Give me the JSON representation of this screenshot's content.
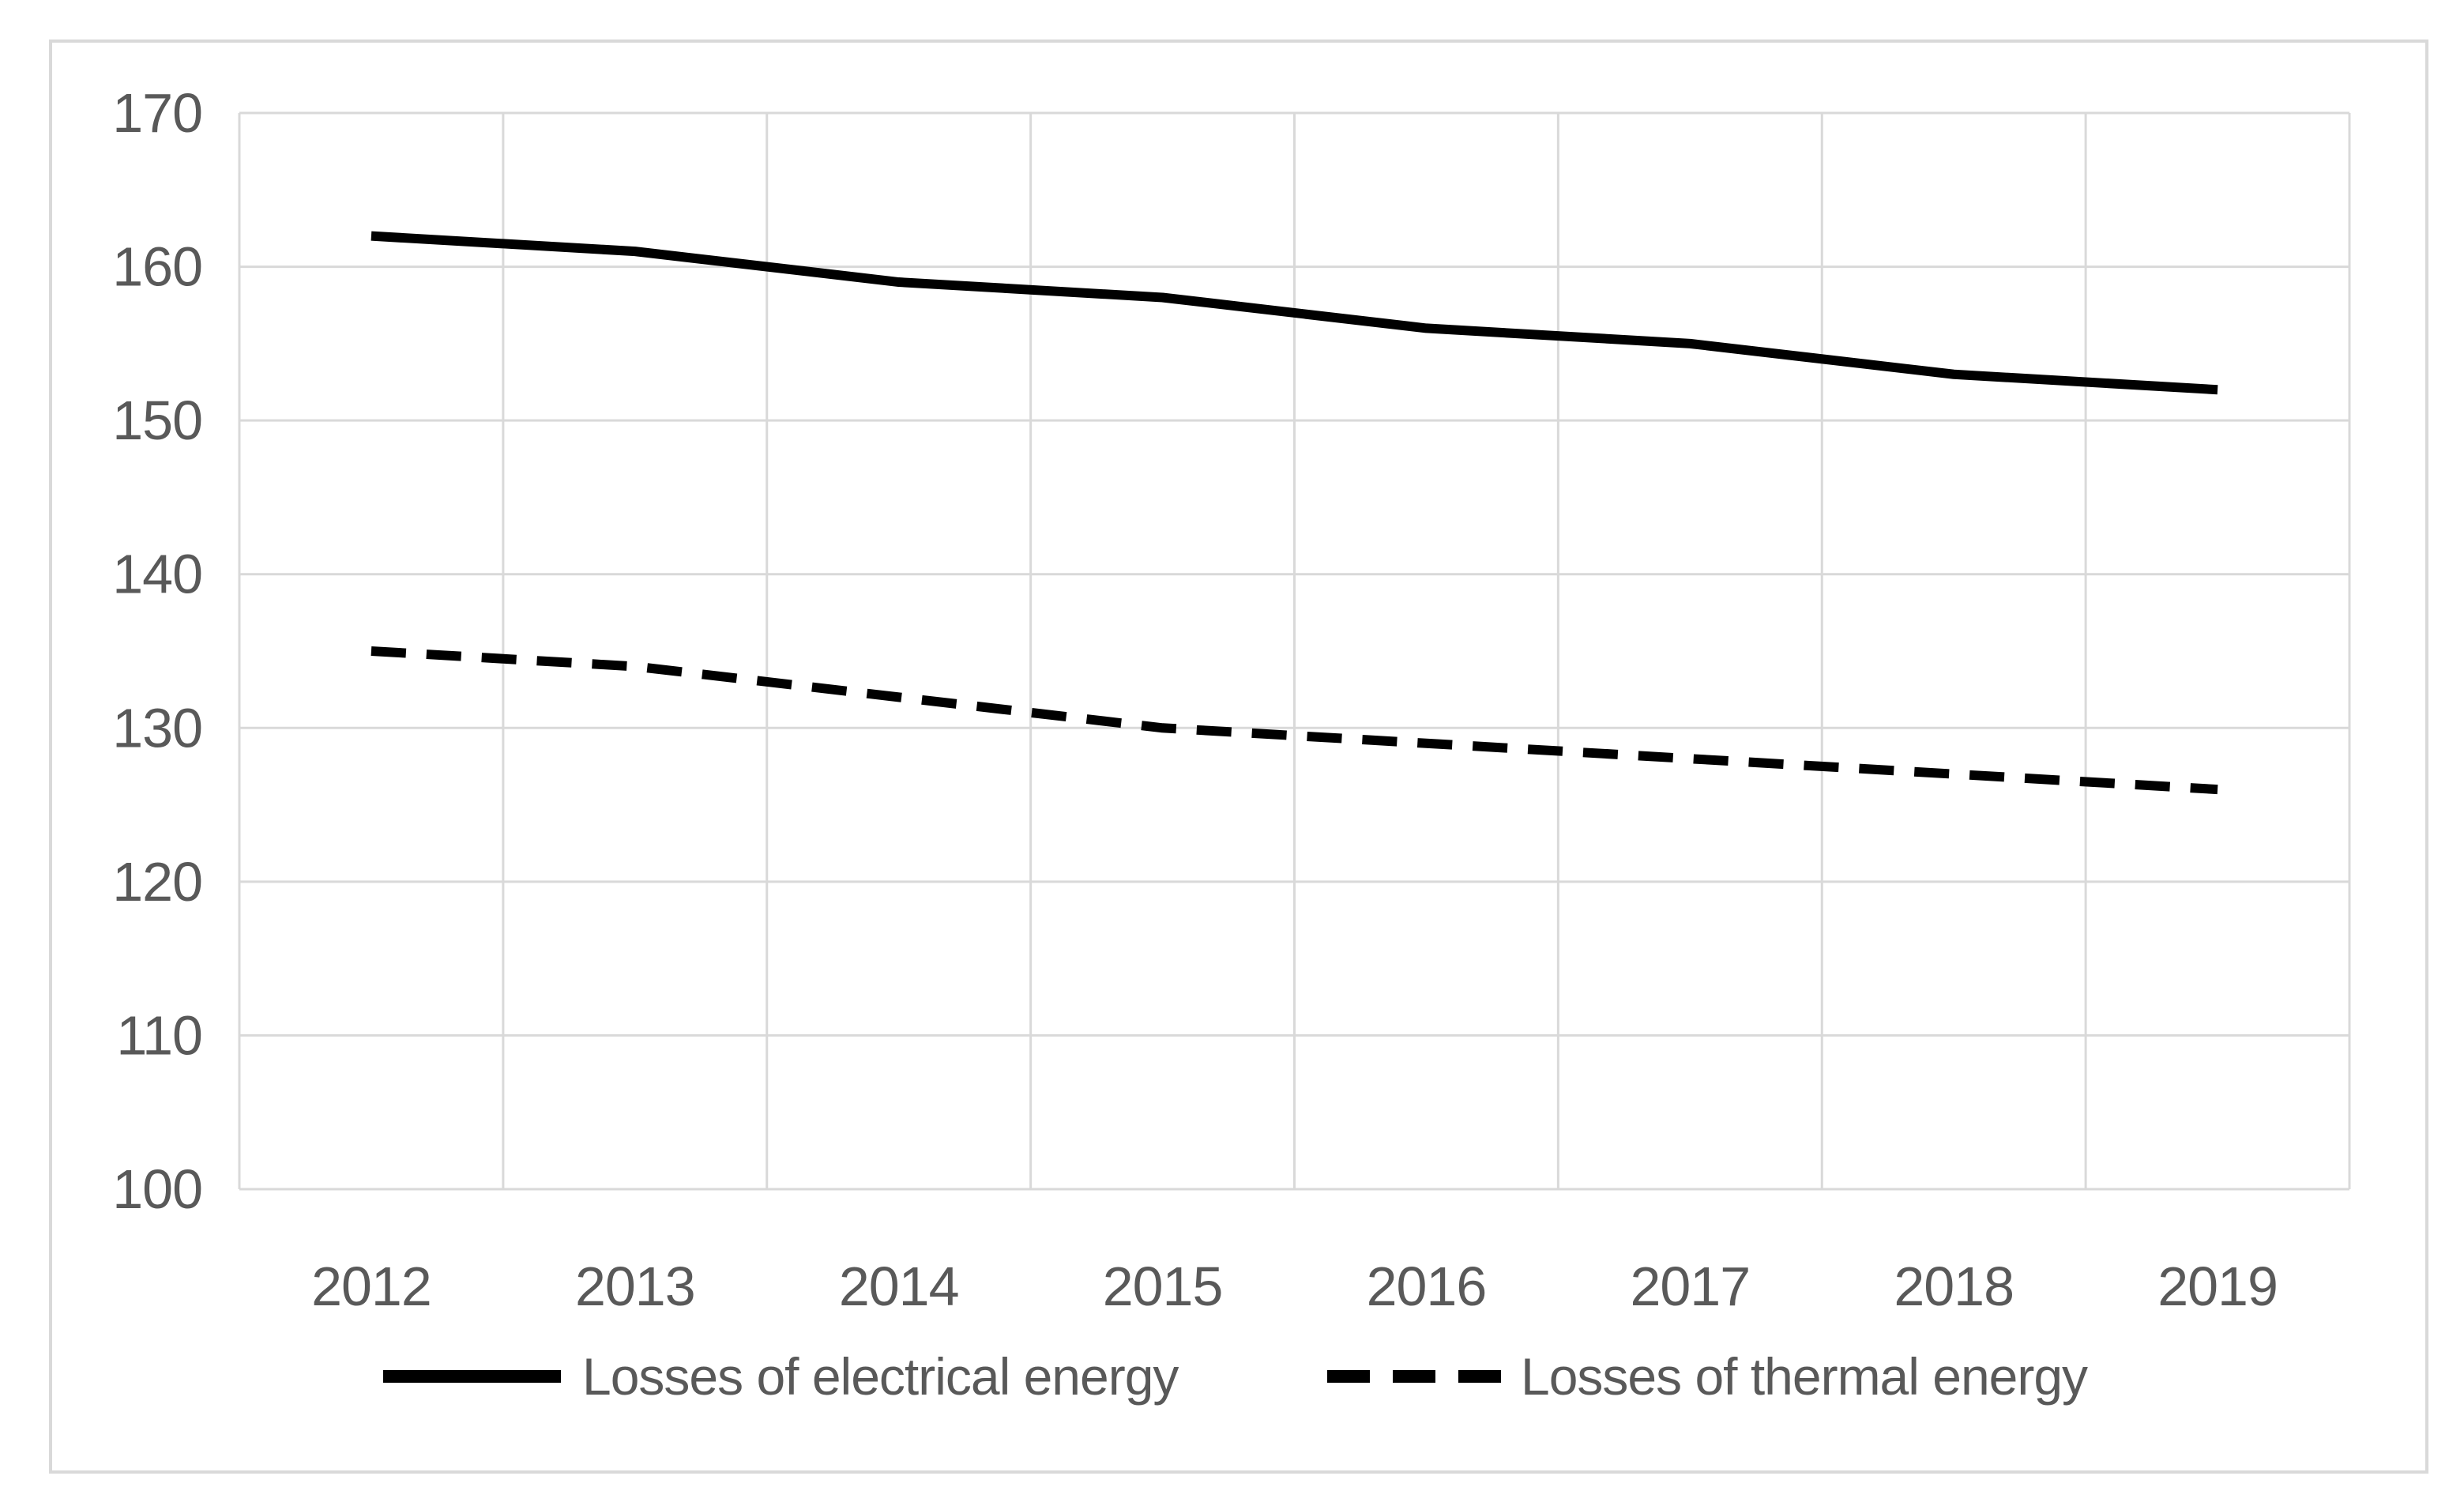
{
  "figure": {
    "background_color": "#ffffff",
    "frame_border_color": "#d9d9d9"
  },
  "chart_data": {
    "type": "line",
    "title": "",
    "xlabel": "",
    "ylabel": "",
    "categories": [
      "2012",
      "2013",
      "2014",
      "2015",
      "2016",
      "2017",
      "2018",
      "2019"
    ],
    "series": [
      {
        "name": "Losses of electrical energy",
        "style": "solid",
        "values": [
          162,
          161,
          159,
          158,
          156,
          155,
          153,
          152
        ]
      },
      {
        "name": "Losses of thermal energy",
        "style": "dashed",
        "values": [
          135,
          134,
          132,
          130,
          129,
          128,
          127,
          126
        ]
      }
    ],
    "ylim": [
      100,
      170
    ],
    "ytick_step": 10,
    "yticks": [
      "100",
      "110",
      "120",
      "130",
      "140",
      "150",
      "160",
      "170"
    ],
    "grid": true,
    "legend_position": "bottom",
    "line_color": "#000000",
    "grid_color": "#d9d9d9",
    "label_color": "#595959"
  }
}
